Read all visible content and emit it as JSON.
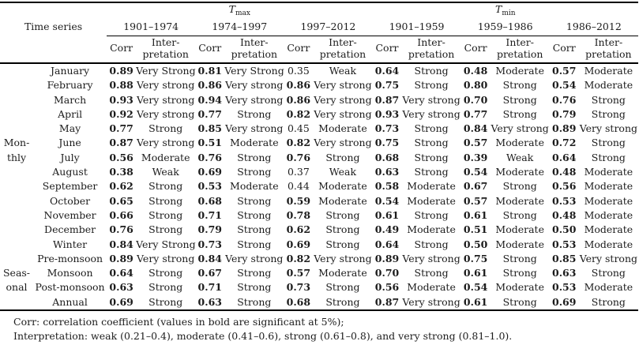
{
  "header": {
    "time_series_label": "Time series",
    "groups": [
      {
        "base": "T",
        "sub": "max",
        "periods": [
          "1901–1974",
          "1974–1997",
          "1997–2012"
        ]
      },
      {
        "base": "T",
        "sub": "min",
        "periods": [
          "1901–1959",
          "1959–1986",
          "1986–2012"
        ]
      }
    ],
    "corr_label": "Corr",
    "interp_line1": "Inter-",
    "interp_line2": "pretation"
  },
  "rows": [
    {
      "side": "",
      "label": "January",
      "cells": [
        {
          "corr": "0.89",
          "bold": true,
          "interp": "Very Strong"
        },
        {
          "corr": "0.81",
          "bold": true,
          "interp": "Very Strong"
        },
        {
          "corr": "0.35",
          "bold": false,
          "interp": "Weak"
        },
        {
          "corr": "0.64",
          "bold": true,
          "interp": "Strong"
        },
        {
          "corr": "0.48",
          "bold": true,
          "interp": "Moderate"
        },
        {
          "corr": "0.57",
          "bold": true,
          "interp": "Moderate"
        }
      ]
    },
    {
      "side": "",
      "label": "February",
      "cells": [
        {
          "corr": "0.88",
          "bold": true,
          "interp": "Very strong"
        },
        {
          "corr": "0.86",
          "bold": true,
          "interp": "Very strong"
        },
        {
          "corr": "0.86",
          "bold": true,
          "interp": "Very strong"
        },
        {
          "corr": "0.75",
          "bold": true,
          "interp": "Strong"
        },
        {
          "corr": "0.80",
          "bold": true,
          "interp": "Strong"
        },
        {
          "corr": "0.54",
          "bold": true,
          "interp": "Moderate"
        }
      ]
    },
    {
      "side": "",
      "label": "March",
      "cells": [
        {
          "corr": "0.93",
          "bold": true,
          "interp": "Very strong"
        },
        {
          "corr": "0.94",
          "bold": true,
          "interp": "Very strong"
        },
        {
          "corr": "0.86",
          "bold": true,
          "interp": "Very strong"
        },
        {
          "corr": "0.87",
          "bold": true,
          "interp": "Very strong"
        },
        {
          "corr": "0.70",
          "bold": true,
          "interp": "Strong"
        },
        {
          "corr": "0.76",
          "bold": true,
          "interp": "Strong"
        }
      ]
    },
    {
      "side": "",
      "label": "April",
      "cells": [
        {
          "corr": "0.92",
          "bold": true,
          "interp": "Very strong"
        },
        {
          "corr": "0.77",
          "bold": true,
          "interp": "Strong"
        },
        {
          "corr": "0.82",
          "bold": true,
          "interp": "Very strong"
        },
        {
          "corr": "0.93",
          "bold": true,
          "interp": "Very strong"
        },
        {
          "corr": "0.77",
          "bold": true,
          "interp": "Strong"
        },
        {
          "corr": "0.79",
          "bold": true,
          "interp": "Strong"
        }
      ]
    },
    {
      "side": "",
      "label": "May",
      "cells": [
        {
          "corr": "0.77",
          "bold": true,
          "interp": "Strong"
        },
        {
          "corr": "0.85",
          "bold": true,
          "interp": "Very strong"
        },
        {
          "corr": "0.45",
          "bold": false,
          "interp": "Moderate"
        },
        {
          "corr": "0.73",
          "bold": true,
          "interp": "Strong"
        },
        {
          "corr": "0.84",
          "bold": true,
          "interp": "Very strong"
        },
        {
          "corr": "0.89",
          "bold": true,
          "interp": "Very strong"
        }
      ]
    },
    {
      "side": "Mon-",
      "label": "June",
      "cells": [
        {
          "corr": "0.87",
          "bold": true,
          "interp": "Very strong"
        },
        {
          "corr": "0.51",
          "bold": true,
          "interp": "Moderate"
        },
        {
          "corr": "0.82",
          "bold": true,
          "interp": "Very strong"
        },
        {
          "corr": "0.75",
          "bold": true,
          "interp": "Strong"
        },
        {
          "corr": "0.57",
          "bold": true,
          "interp": "Moderate"
        },
        {
          "corr": "0.72",
          "bold": true,
          "interp": "Strong"
        }
      ]
    },
    {
      "side": "thly",
      "label": "July",
      "cells": [
        {
          "corr": "0.56",
          "bold": true,
          "interp": "Moderate"
        },
        {
          "corr": "0.76",
          "bold": true,
          "interp": "Strong"
        },
        {
          "corr": "0.76",
          "bold": true,
          "interp": "Strong"
        },
        {
          "corr": "0.68",
          "bold": true,
          "interp": "Strong"
        },
        {
          "corr": "0.39",
          "bold": true,
          "interp": "Weak"
        },
        {
          "corr": "0.64",
          "bold": true,
          "interp": "Strong"
        }
      ]
    },
    {
      "side": "",
      "label": "August",
      "cells": [
        {
          "corr": "0.38",
          "bold": true,
          "interp": "Weak"
        },
        {
          "corr": "0.69",
          "bold": true,
          "interp": "Strong"
        },
        {
          "corr": "0.37",
          "bold": false,
          "interp": "Weak"
        },
        {
          "corr": "0.63",
          "bold": true,
          "interp": "Strong"
        },
        {
          "corr": "0.54",
          "bold": true,
          "interp": "Moderate"
        },
        {
          "corr": "0.48",
          "bold": true,
          "interp": "Moderate"
        }
      ]
    },
    {
      "side": "",
      "label": "September",
      "cells": [
        {
          "corr": "0.62",
          "bold": true,
          "interp": "Strong"
        },
        {
          "corr": "0.53",
          "bold": true,
          "interp": "Moderate"
        },
        {
          "corr": "0.44",
          "bold": false,
          "interp": "Moderate"
        },
        {
          "corr": "0.58",
          "bold": true,
          "interp": "Moderate"
        },
        {
          "corr": "0.67",
          "bold": true,
          "interp": "Strong"
        },
        {
          "corr": "0.56",
          "bold": true,
          "interp": "Moderate"
        }
      ]
    },
    {
      "side": "",
      "label": "October",
      "cells": [
        {
          "corr": "0.65",
          "bold": true,
          "interp": "Strong"
        },
        {
          "corr": "0.68",
          "bold": true,
          "interp": "Strong"
        },
        {
          "corr": "0.59",
          "bold": true,
          "interp": "Moderate"
        },
        {
          "corr": "0.54",
          "bold": true,
          "interp": "Moderate"
        },
        {
          "corr": "0.57",
          "bold": true,
          "interp": "Moderate"
        },
        {
          "corr": "0.53",
          "bold": true,
          "interp": "Moderate"
        }
      ]
    },
    {
      "side": "",
      "label": "November",
      "cells": [
        {
          "corr": "0.66",
          "bold": true,
          "interp": "Strong"
        },
        {
          "corr": "0.71",
          "bold": true,
          "interp": "Strong"
        },
        {
          "corr": "0.78",
          "bold": true,
          "interp": "Strong"
        },
        {
          "corr": "0.61",
          "bold": true,
          "interp": "Strong"
        },
        {
          "corr": "0.61",
          "bold": true,
          "interp": "Strong"
        },
        {
          "corr": "0.48",
          "bold": true,
          "interp": "Moderate"
        }
      ]
    },
    {
      "side": "",
      "label": "December",
      "cells": [
        {
          "corr": "0.76",
          "bold": true,
          "interp": "Strong"
        },
        {
          "corr": "0.79",
          "bold": true,
          "interp": "Strong"
        },
        {
          "corr": "0.62",
          "bold": true,
          "interp": "Strong"
        },
        {
          "corr": "0.49",
          "bold": true,
          "interp": "Moderate"
        },
        {
          "corr": "0.51",
          "bold": true,
          "interp": "Moderate"
        },
        {
          "corr": "0.50",
          "bold": true,
          "interp": "Moderate"
        }
      ]
    },
    {
      "side": "",
      "label": "Winter",
      "cells": [
        {
          "corr": "0.84",
          "bold": true,
          "interp": "Very Strong"
        },
        {
          "corr": "0.73",
          "bold": true,
          "interp": "Strong"
        },
        {
          "corr": "0.69",
          "bold": true,
          "interp": "Strong"
        },
        {
          "corr": "0.64",
          "bold": true,
          "interp": "Strong"
        },
        {
          "corr": "0.50",
          "bold": true,
          "interp": "Moderate"
        },
        {
          "corr": "0.53",
          "bold": true,
          "interp": "Moderate"
        }
      ]
    },
    {
      "side": "",
      "label": "Pre-monsoon",
      "cells": [
        {
          "corr": "0.89",
          "bold": true,
          "interp": "Very strong"
        },
        {
          "corr": "0.84",
          "bold": true,
          "interp": "Very strong"
        },
        {
          "corr": "0.82",
          "bold": true,
          "interp": "Very strong"
        },
        {
          "corr": "0.89",
          "bold": true,
          "interp": "Very strong"
        },
        {
          "corr": "0.75",
          "bold": true,
          "interp": "Strong"
        },
        {
          "corr": "0.85",
          "bold": true,
          "interp": "Very strong"
        }
      ]
    },
    {
      "side": "Seas-",
      "label": "Monsoon",
      "cells": [
        {
          "corr": "0.64",
          "bold": true,
          "interp": "Strong"
        },
        {
          "corr": "0.67",
          "bold": true,
          "interp": "Strong"
        },
        {
          "corr": "0.57",
          "bold": true,
          "interp": "Moderate"
        },
        {
          "corr": "0.70",
          "bold": true,
          "interp": "Strong"
        },
        {
          "corr": "0.61",
          "bold": true,
          "interp": "Strong"
        },
        {
          "corr": "0.63",
          "bold": true,
          "interp": "Strong"
        }
      ]
    },
    {
      "side": "onal",
      "label": "Post-monsoon",
      "cells": [
        {
          "corr": "0.63",
          "bold": true,
          "interp": "Strong"
        },
        {
          "corr": "0.71",
          "bold": true,
          "interp": "Strong"
        },
        {
          "corr": "0.73",
          "bold": true,
          "interp": "Strong"
        },
        {
          "corr": "0.56",
          "bold": true,
          "interp": "Moderate"
        },
        {
          "corr": "0.54",
          "bold": true,
          "interp": "Moderate"
        },
        {
          "corr": "0.53",
          "bold": true,
          "interp": "Moderate"
        }
      ]
    },
    {
      "side": "",
      "label": "Annual",
      "cells": [
        {
          "corr": "0.69",
          "bold": true,
          "interp": "Strong"
        },
        {
          "corr": "0.63",
          "bold": true,
          "interp": "Strong"
        },
        {
          "corr": "0.68",
          "bold": true,
          "interp": "Strong"
        },
        {
          "corr": "0.87",
          "bold": true,
          "interp": "Very strong"
        },
        {
          "corr": "0.61",
          "bold": true,
          "interp": "Strong"
        },
        {
          "corr": "0.69",
          "bold": true,
          "interp": "Strong"
        }
      ]
    }
  ],
  "footnotes": [
    "Corr: correlation coefficient (values in bold are significant at 5%);",
    "Interpretation: weak (0.21–0.4), moderate (0.41–0.6), strong (0.61–0.8), and very strong (0.81–1.0)."
  ]
}
